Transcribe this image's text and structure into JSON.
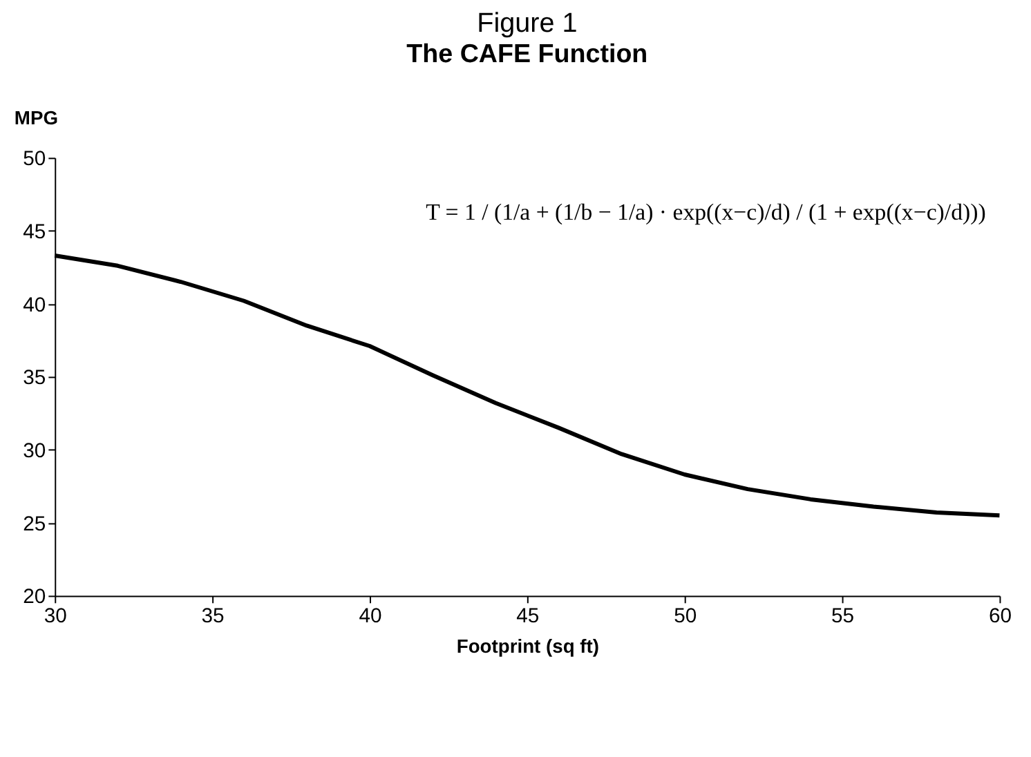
{
  "chart_data": {
    "type": "line",
    "title": "Figure 1",
    "subtitle": "The CAFE Function",
    "xlabel": "Footprint (sq ft)",
    "ylabel": "MPG",
    "x": [
      30,
      32,
      34,
      36,
      38,
      40,
      42,
      44,
      46,
      48,
      50,
      52,
      54,
      56,
      58,
      60
    ],
    "series": [
      {
        "color": "#000000",
        "values": [
          43.3,
          42.6,
          41.5,
          40.2,
          38.5,
          37.1,
          35.1,
          33.2,
          31.5,
          29.7,
          28.3,
          27.3,
          26.6,
          26.1,
          25.7,
          25.5
        ]
      }
    ],
    "xlim": [
      30,
      60
    ],
    "xticks": [
      30,
      35,
      40,
      45,
      50,
      55,
      60
    ],
    "ylim": [
      20,
      50
    ],
    "yticks": [
      20,
      25,
      30,
      35,
      40,
      45,
      50
    ],
    "grid": false,
    "marker": "none",
    "line_style": "solid",
    "annotations": [
      "T = 1 / (1/a + (1/b − 1/a) · exp((x−c)/d) / (1 + exp((x−c)/d)))"
    ]
  }
}
